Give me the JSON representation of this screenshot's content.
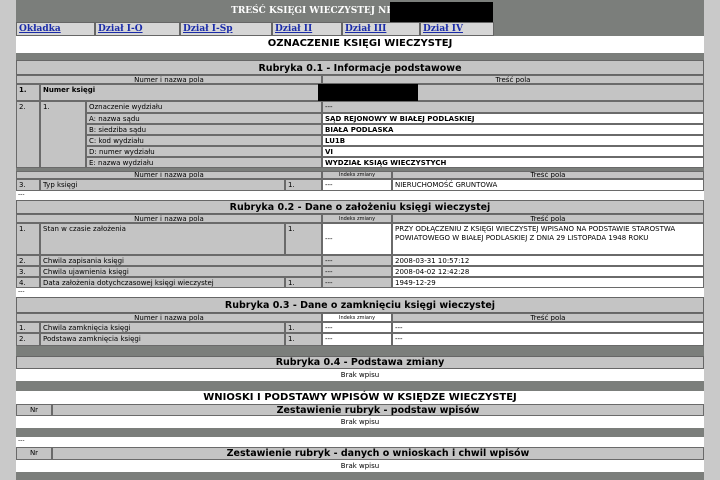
{
  "title": "TREŚĆ KSIĘGI WIECZYSTEJ NR",
  "tabs": [
    "Okładka",
    "Dział I-O",
    "Dział I-Sp",
    "Dział II",
    "Dział III",
    "Dział IV"
  ],
  "main_heading": "OZNACZENIE KSIĘGI WIECZYSTEJ",
  "col": {
    "name": "Numer i nazwa pola",
    "content": "Treść pola",
    "index": "Indeks zmiany"
  },
  "r01": {
    "title": "Rubryka 0.1 - Informacje podstawowe",
    "row1": {
      "num": "1.",
      "label": "Numer księgi"
    },
    "row2": {
      "num": "2.",
      "sub": "1.",
      "label": "Oznaczenie wydziału",
      "value": "---",
      "fields": [
        {
          "label": "A: nazwa sądu",
          "value": "SĄD REJONOWY W BIAŁEJ PODLASKIEJ"
        },
        {
          "label": "B: siedziba sądu",
          "value": "BIAŁA PODLASKA"
        },
        {
          "label": "C: kod wydziału",
          "value": "LU1B"
        },
        {
          "label": "D: numer wydziału",
          "value": "VI"
        },
        {
          "label": "E: nazwa wydziału",
          "value": "WYDZIAŁ KSIĄG WIECZYSTYCH"
        }
      ]
    },
    "row3": {
      "num": "3.",
      "label": "Typ księgi",
      "sub": "1.",
      "index": "---",
      "value": "NIERUCHOMOŚĆ GRUNTOWA"
    },
    "more": "---"
  },
  "r02": {
    "title": "Rubryka 0.2 - Dane o założeniu księgi wieczystej",
    "rows": [
      {
        "num": "1.",
        "label": "Stan w czasie założenia",
        "sub": "1.",
        "index": "---",
        "value": "PRZY ODŁĄCZENIU Z KSIĘGI WIECZYSTEJ WPISANO NA PODSTAWIE STAROSTWA POWIATOWEGO W BIAŁEJ PODLASKIEJ Z DNIA 29 LISTOPADA 1948 ROKU"
      },
      {
        "num": "2.",
        "label": "Chwila zapisania księgi",
        "index": "---",
        "value": "2008-03-31 10:57:12"
      },
      {
        "num": "3.",
        "label": "Chwila ujawnienia księgi",
        "index": "---",
        "value": "2008-04-02 12:42:28"
      },
      {
        "num": "4.",
        "label": "Data założenia dotychczasowej księgi wieczystej",
        "sub": "1.",
        "index": "---",
        "value": "1949-12-29"
      }
    ],
    "more": "---"
  },
  "r03": {
    "title": "Rubryka 0.3 - Dane o zamknięciu księgi wieczystej",
    "rows": [
      {
        "num": "1.",
        "label": "Chwila zamknięcia księgi",
        "sub": "1.",
        "index": "---",
        "value": "---"
      },
      {
        "num": "2.",
        "label": "Podstawa zamknięcia księgi",
        "sub": "1.",
        "index": "---",
        "value": "---"
      }
    ]
  },
  "r04": {
    "title": "Rubryka 0.4 - Podstawa zmiany",
    "empty": "Brak wpisu"
  },
  "wnioski": {
    "heading": "WNIOSKI I PODSTAWY WPISÓW W KSIĘDZE WIECZYSTEJ",
    "nr": "Nr",
    "t1": "Zestawienie rubryk - podstaw wpisów",
    "empty1": "Brak wpisu",
    "more": "---",
    "t2": "Zestawienie rubryk - danych o wnioskach i chwil wpisów",
    "empty2": "Brak wpisu"
  }
}
